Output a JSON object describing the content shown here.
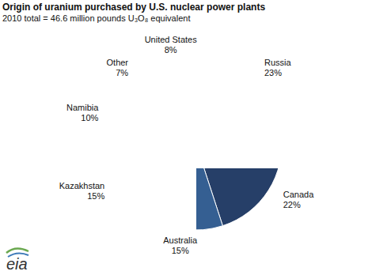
{
  "chart_data": {
    "type": "pie",
    "title": "Origin of uranium purchased by U.S. nuclear power plants",
    "subtitle": "2010 total = 46.6 million pounds U₃O₈ equivalent",
    "categories": [
      "Russia",
      "Canada",
      "Australia",
      "Kazakhstan",
      "Namibia",
      "Other",
      "United States"
    ],
    "values": [
      23,
      22,
      15,
      15,
      10,
      7,
      8
    ],
    "value_labels": [
      "23%",
      "22%",
      "15%",
      "15%",
      "10%",
      "7%",
      "8%"
    ],
    "colors": [
      "#10264a",
      "#263f68",
      "#355f92",
      "#7f9dc6",
      "#b5c8df",
      "#dfe6f0",
      "#9d3a32"
    ],
    "data_labels": true,
    "annotations": [
      "eia"
    ]
  }
}
